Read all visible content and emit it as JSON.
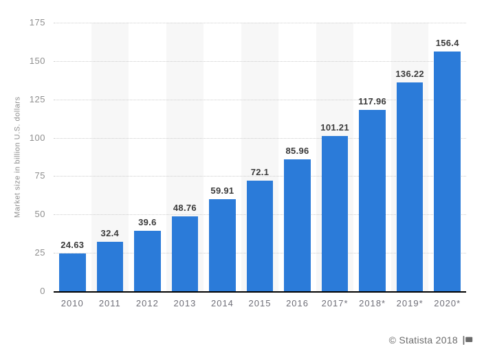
{
  "chart_data": {
    "type": "bar",
    "categories": [
      "2010",
      "2011",
      "2012",
      "2013",
      "2014",
      "2015",
      "2016",
      "2017*",
      "2018*",
      "2019*",
      "2020*"
    ],
    "values": [
      24.63,
      32.4,
      39.6,
      48.76,
      59.91,
      72.1,
      85.96,
      101.21,
      117.96,
      136.22,
      156.4
    ],
    "title": "",
    "xlabel": "",
    "ylabel": "Market size in billion U.S. dollars",
    "ylim": [
      0,
      175
    ],
    "yticks": [
      175,
      150,
      125,
      100,
      75,
      50,
      25,
      0
    ],
    "grid": "horizontal-dotted",
    "legend": false,
    "bar_color": "#2b7bd9",
    "stripe_color": "#f7f7f7",
    "striped_columns": [
      1,
      3,
      5,
      7,
      9
    ]
  },
  "footer": {
    "attribution": "© Statista 2018",
    "flag_icon": "flag-icon"
  }
}
